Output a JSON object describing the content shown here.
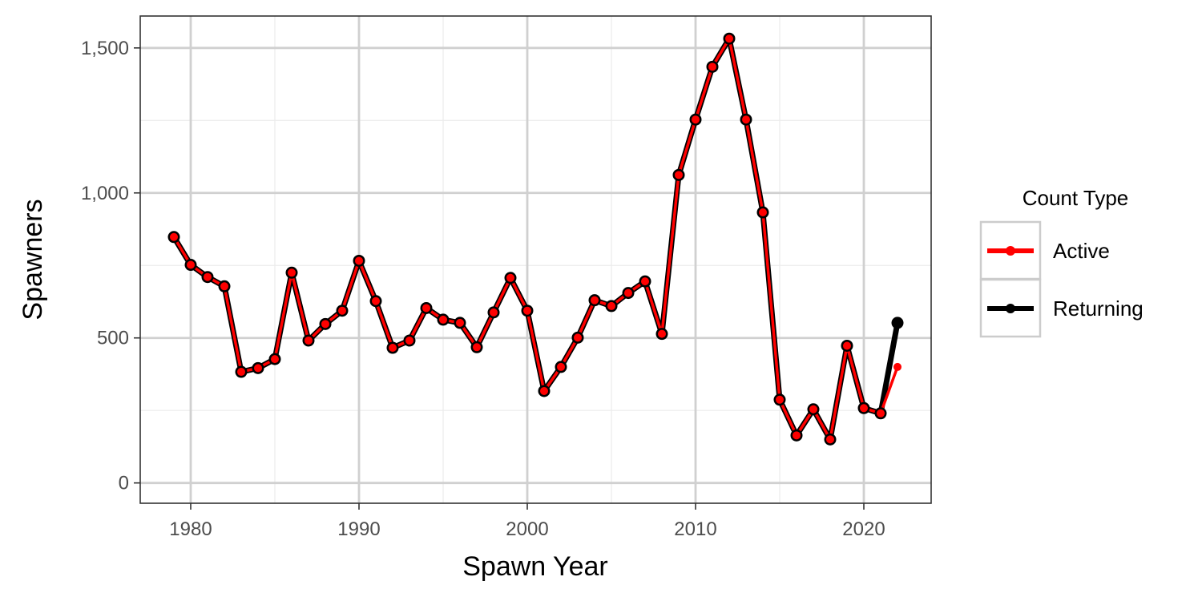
{
  "chart_data": {
    "type": "line",
    "xlabel": "Spawn Year",
    "ylabel": "Spawners",
    "xlim": [
      1977,
      2024
    ],
    "ylim": [
      -70,
      1610
    ],
    "x_ticks": [
      1980,
      1990,
      2000,
      2010,
      2020
    ],
    "x_tick_labels": [
      "1980",
      "1990",
      "2000",
      "2010",
      "2020"
    ],
    "y_ticks": [
      0,
      500,
      1000,
      1500
    ],
    "y_tick_labels": [
      "0",
      "500",
      "1,000",
      "1,500"
    ],
    "grid": true,
    "legend": {
      "title": "Count Type",
      "position": "right",
      "entries": [
        "Active",
        "Returning"
      ]
    },
    "series": [
      {
        "name": "Returning",
        "color": "#000000",
        "x": [
          1979,
          1980,
          1981,
          1982,
          1983,
          1984,
          1985,
          1986,
          1987,
          1988,
          1989,
          1990,
          1991,
          1992,
          1993,
          1994,
          1995,
          1996,
          1997,
          1998,
          1999,
          2000,
          2001,
          2002,
          2003,
          2004,
          2005,
          2006,
          2007,
          2008,
          2009,
          2010,
          2011,
          2012,
          2013,
          2014,
          2015,
          2016,
          2017,
          2018,
          2019,
          2020,
          2021,
          2022
        ],
        "values": [
          848,
          752,
          710,
          678,
          383,
          396,
          427,
          725,
          491,
          548,
          594,
          766,
          627,
          466,
          491,
          603,
          563,
          552,
          468,
          588,
          707,
          594,
          317,
          400,
          501,
          630,
          610,
          655,
          695,
          514,
          1062,
          1253,
          1435,
          1532,
          1253,
          933,
          287,
          164,
          254,
          150,
          473,
          258,
          240,
          552
        ]
      },
      {
        "name": "Active",
        "color": "#ff0000",
        "x": [
          1979,
          1980,
          1981,
          1982,
          1983,
          1984,
          1985,
          1986,
          1987,
          1988,
          1989,
          1990,
          1991,
          1992,
          1993,
          1994,
          1995,
          1996,
          1997,
          1998,
          1999,
          2000,
          2001,
          2002,
          2003,
          2004,
          2005,
          2006,
          2007,
          2008,
          2009,
          2010,
          2011,
          2012,
          2013,
          2014,
          2015,
          2016,
          2017,
          2018,
          2019,
          2020,
          2021,
          2022
        ],
        "values": [
          848,
          752,
          710,
          678,
          383,
          396,
          427,
          725,
          491,
          548,
          594,
          766,
          627,
          466,
          491,
          603,
          563,
          552,
          468,
          588,
          707,
          594,
          317,
          400,
          501,
          630,
          610,
          655,
          695,
          514,
          1062,
          1253,
          1435,
          1532,
          1253,
          933,
          287,
          164,
          254,
          150,
          473,
          258,
          240,
          400
        ]
      }
    ]
  }
}
